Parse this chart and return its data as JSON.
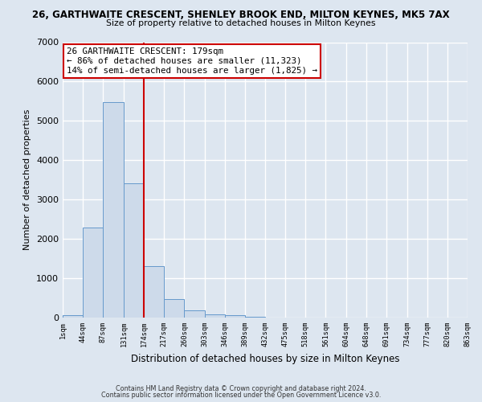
{
  "title_line1": "26, GARTHWAITE CRESCENT, SHENLEY BROOK END, MILTON KEYNES, MK5 7AX",
  "title_line2": "Size of property relative to detached houses in Milton Keynes",
  "xlabel": "Distribution of detached houses by size in Milton Keynes",
  "ylabel": "Number of detached properties",
  "bar_color": "#cddaea",
  "bar_edge_color": "#6699cc",
  "background_color": "#dde6f0",
  "plot_bg_color": "#dde6f0",
  "grid_color": "#ffffff",
  "bin_edges": [
    1,
    44,
    87,
    131,
    174,
    217,
    260,
    303,
    346,
    389,
    432,
    475,
    518,
    561,
    604,
    648,
    691,
    734,
    777,
    820,
    863
  ],
  "bar_heights": [
    60,
    2280,
    5480,
    3420,
    1310,
    460,
    185,
    80,
    55,
    30,
    0,
    0,
    0,
    0,
    0,
    0,
    0,
    0,
    0,
    0
  ],
  "vline_color": "#cc0000",
  "vline_x": 174,
  "annotation_line1": "26 GARTHWAITE CRESCENT: 179sqm",
  "annotation_line2": "← 86% of detached houses are smaller (11,323)",
  "annotation_line3": "14% of semi-detached houses are larger (1,825) →",
  "box_edge_color": "#cc0000",
  "ylim": [
    0,
    7000
  ],
  "yticks": [
    0,
    1000,
    2000,
    3000,
    4000,
    5000,
    6000,
    7000
  ],
  "tick_labels": [
    "1sqm",
    "44sqm",
    "87sqm",
    "131sqm",
    "174sqm",
    "217sqm",
    "260sqm",
    "303sqm",
    "346sqm",
    "389sqm",
    "432sqm",
    "475sqm",
    "518sqm",
    "561sqm",
    "604sqm",
    "648sqm",
    "691sqm",
    "734sqm",
    "777sqm",
    "820sqm",
    "863sqm"
  ],
  "footer_line1": "Contains HM Land Registry data © Crown copyright and database right 2024.",
  "footer_line2": "Contains public sector information licensed under the Open Government Licence v3.0."
}
